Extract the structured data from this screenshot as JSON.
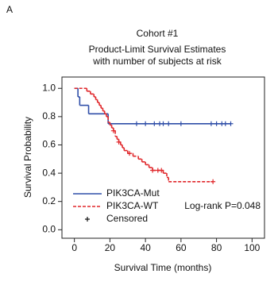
{
  "panel_label": "A",
  "chart_data": {
    "type": "step",
    "title": "Cohort #1",
    "subtitle": [
      "Product-Limit Survival Estimates",
      "with number of subjects at risk"
    ],
    "xlabel": "Survival Time (months)",
    "ylabel": "Survival Probability",
    "xlim": [
      -7,
      107
    ],
    "ylim": [
      -0.06,
      1.08
    ],
    "xticks": [
      0,
      20,
      40,
      60,
      80,
      100
    ],
    "yticks": [
      {
        "value": 0,
        "label": "0.0"
      },
      {
        "value": 0.2,
        "label": "0.2"
      },
      {
        "value": 0.4,
        "label": "0.4"
      },
      {
        "value": 0.6,
        "label": "0.6"
      },
      {
        "value": 0.8,
        "label": "0.8"
      },
      {
        "value": 1,
        "label": "1.0"
      }
    ],
    "legend": "lower left",
    "censor_label": "Censored",
    "annotation": "Log-rank P=0.048",
    "series": [
      {
        "name": "PIK3CA-Mut",
        "color": "#2f4ea8",
        "dash": false,
        "x": [
          0,
          2,
          3,
          8,
          19,
          88
        ],
        "values": [
          1,
          0.94,
          0.88,
          0.82,
          0.75,
          0.75
        ],
        "censored_x": [
          35,
          40,
          45,
          48,
          50,
          53,
          60,
          77,
          80,
          83,
          85,
          88
        ],
        "censored_values": [
          0.75,
          0.75,
          0.75,
          0.75,
          0.75,
          0.75,
          0.75,
          0.75,
          0.75,
          0.75,
          0.75,
          0.75
        ]
      },
      {
        "name": "PIK3CA-WT",
        "color": "#e0262a",
        "dash": true,
        "x": [
          0,
          7,
          9,
          11,
          12,
          13,
          14,
          15,
          16,
          17,
          18,
          19,
          20,
          21,
          22,
          23,
          24,
          25,
          26,
          27,
          28,
          30,
          33,
          36,
          38,
          40,
          42,
          44,
          50,
          52,
          53,
          78
        ],
        "values": [
          1,
          0.98,
          0.96,
          0.94,
          0.92,
          0.9,
          0.88,
          0.86,
          0.84,
          0.82,
          0.8,
          0.76,
          0.74,
          0.72,
          0.7,
          0.66,
          0.64,
          0.62,
          0.6,
          0.58,
          0.56,
          0.54,
          0.52,
          0.5,
          0.48,
          0.46,
          0.44,
          0.42,
          0.4,
          0.37,
          0.34,
          0.34
        ],
        "censored_x": [
          22,
          25,
          31,
          44,
          47,
          49,
          78
        ],
        "censored_values": [
          0.7,
          0.62,
          0.54,
          0.42,
          0.42,
          0.42,
          0.34
        ]
      }
    ]
  }
}
